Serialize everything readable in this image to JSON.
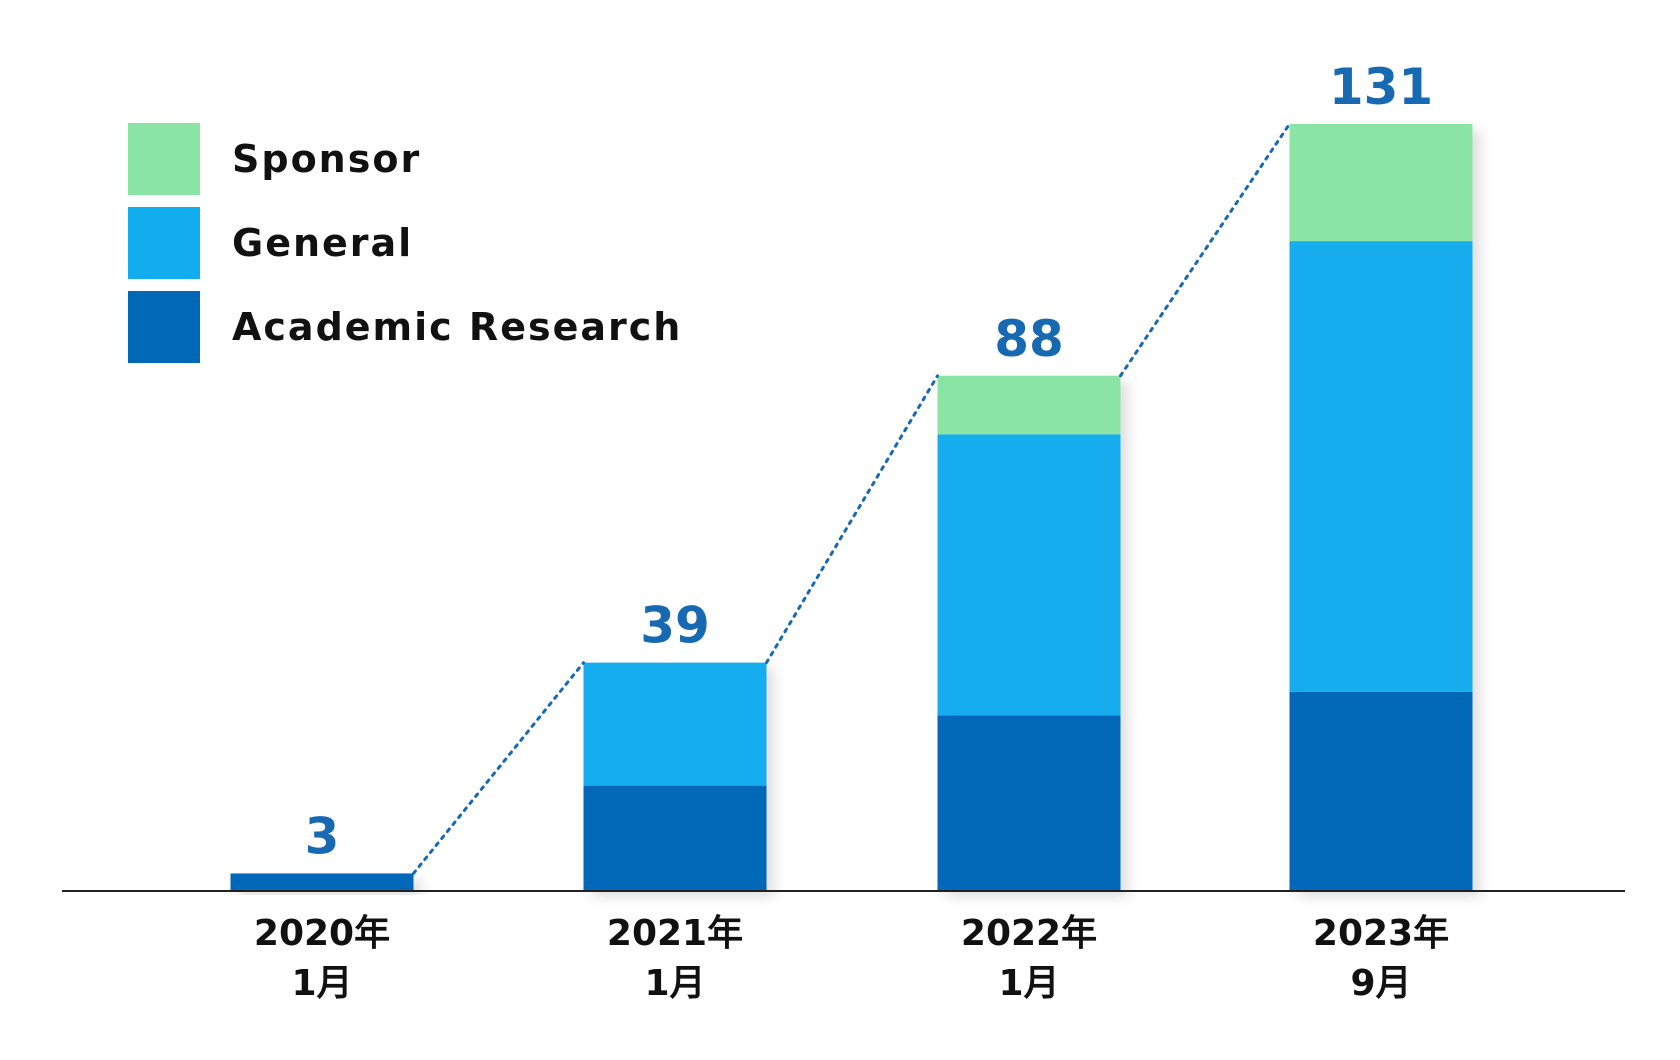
{
  "chart_data": {
    "type": "bar",
    "stacked": true,
    "categories": [
      [
        "2020年",
        "1月"
      ],
      [
        "2021年",
        "1月"
      ],
      [
        "2022年",
        "1月"
      ],
      [
        "2023年",
        "9月"
      ]
    ],
    "series": [
      {
        "name": "Academic Research",
        "color": "#0068b7",
        "values": [
          3,
          18,
          30,
          34
        ]
      },
      {
        "name": "General",
        "color": "#12adef",
        "values": [
          0,
          21,
          48,
          77
        ]
      },
      {
        "name": "Sponsor",
        "color": "#8ae5a5",
        "values": [
          0,
          0,
          10,
          20
        ]
      }
    ],
    "totals": [
      3,
      39,
      88,
      131
    ],
    "total_label_color": "#1769b2",
    "legend_order": [
      "Sponsor",
      "General",
      "Academic Research"
    ],
    "legend_position": "top-left",
    "connector": "dotted line linking bar tops",
    "grid": false,
    "ylim": [
      0,
      131
    ]
  }
}
